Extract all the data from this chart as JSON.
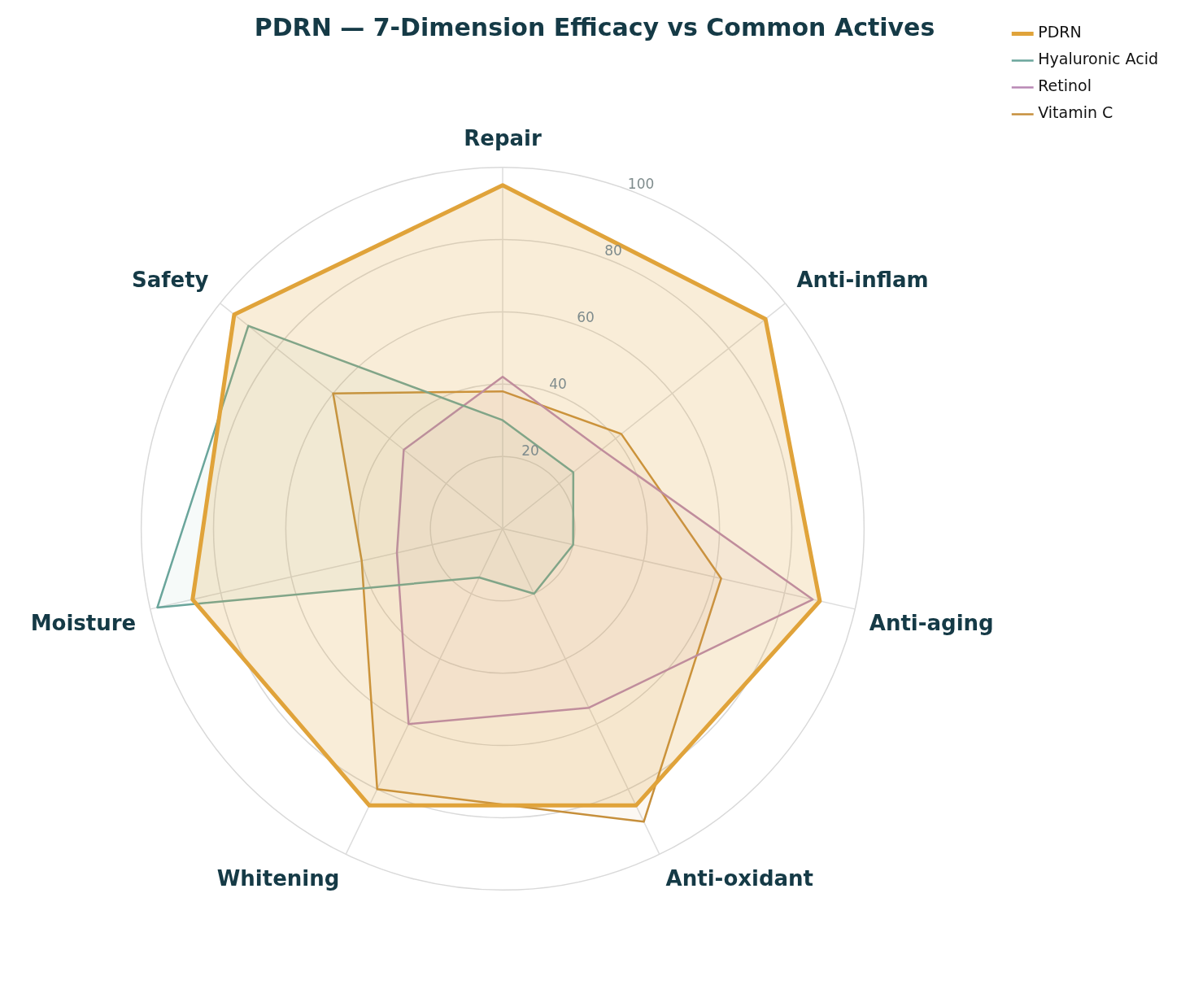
{
  "chart_data": {
    "type": "radar",
    "title": "PDRN — 7-Dimension Efficacy vs Common Actives",
    "categories": [
      "Repair",
      "Anti-inflam",
      "Anti-aging",
      "Anti-oxidant",
      "Whitening",
      "Moisture",
      "Safety"
    ],
    "series": [
      {
        "name": "PDRN",
        "color": "#e0a33a",
        "values": [
          95,
          93,
          90,
          85,
          85,
          88,
          95
        ]
      },
      {
        "name": "Hyaluronic Acid",
        "color": "#6aa59b",
        "values": [
          30,
          25,
          20,
          20,
          15,
          98,
          90
        ]
      },
      {
        "name": "Retinol",
        "color": "#b888b5",
        "values": [
          42,
          35,
          88,
          55,
          60,
          30,
          35
        ]
      },
      {
        "name": "Vitamin C",
        "color": "#c68f3b",
        "values": [
          38,
          42,
          62,
          90,
          80,
          40,
          60
        ]
      }
    ],
    "ylim": [
      0,
      100
    ],
    "yticks": [
      20,
      40,
      60,
      80,
      100
    ],
    "grid": true,
    "legend": "top right",
    "marker": "none"
  }
}
